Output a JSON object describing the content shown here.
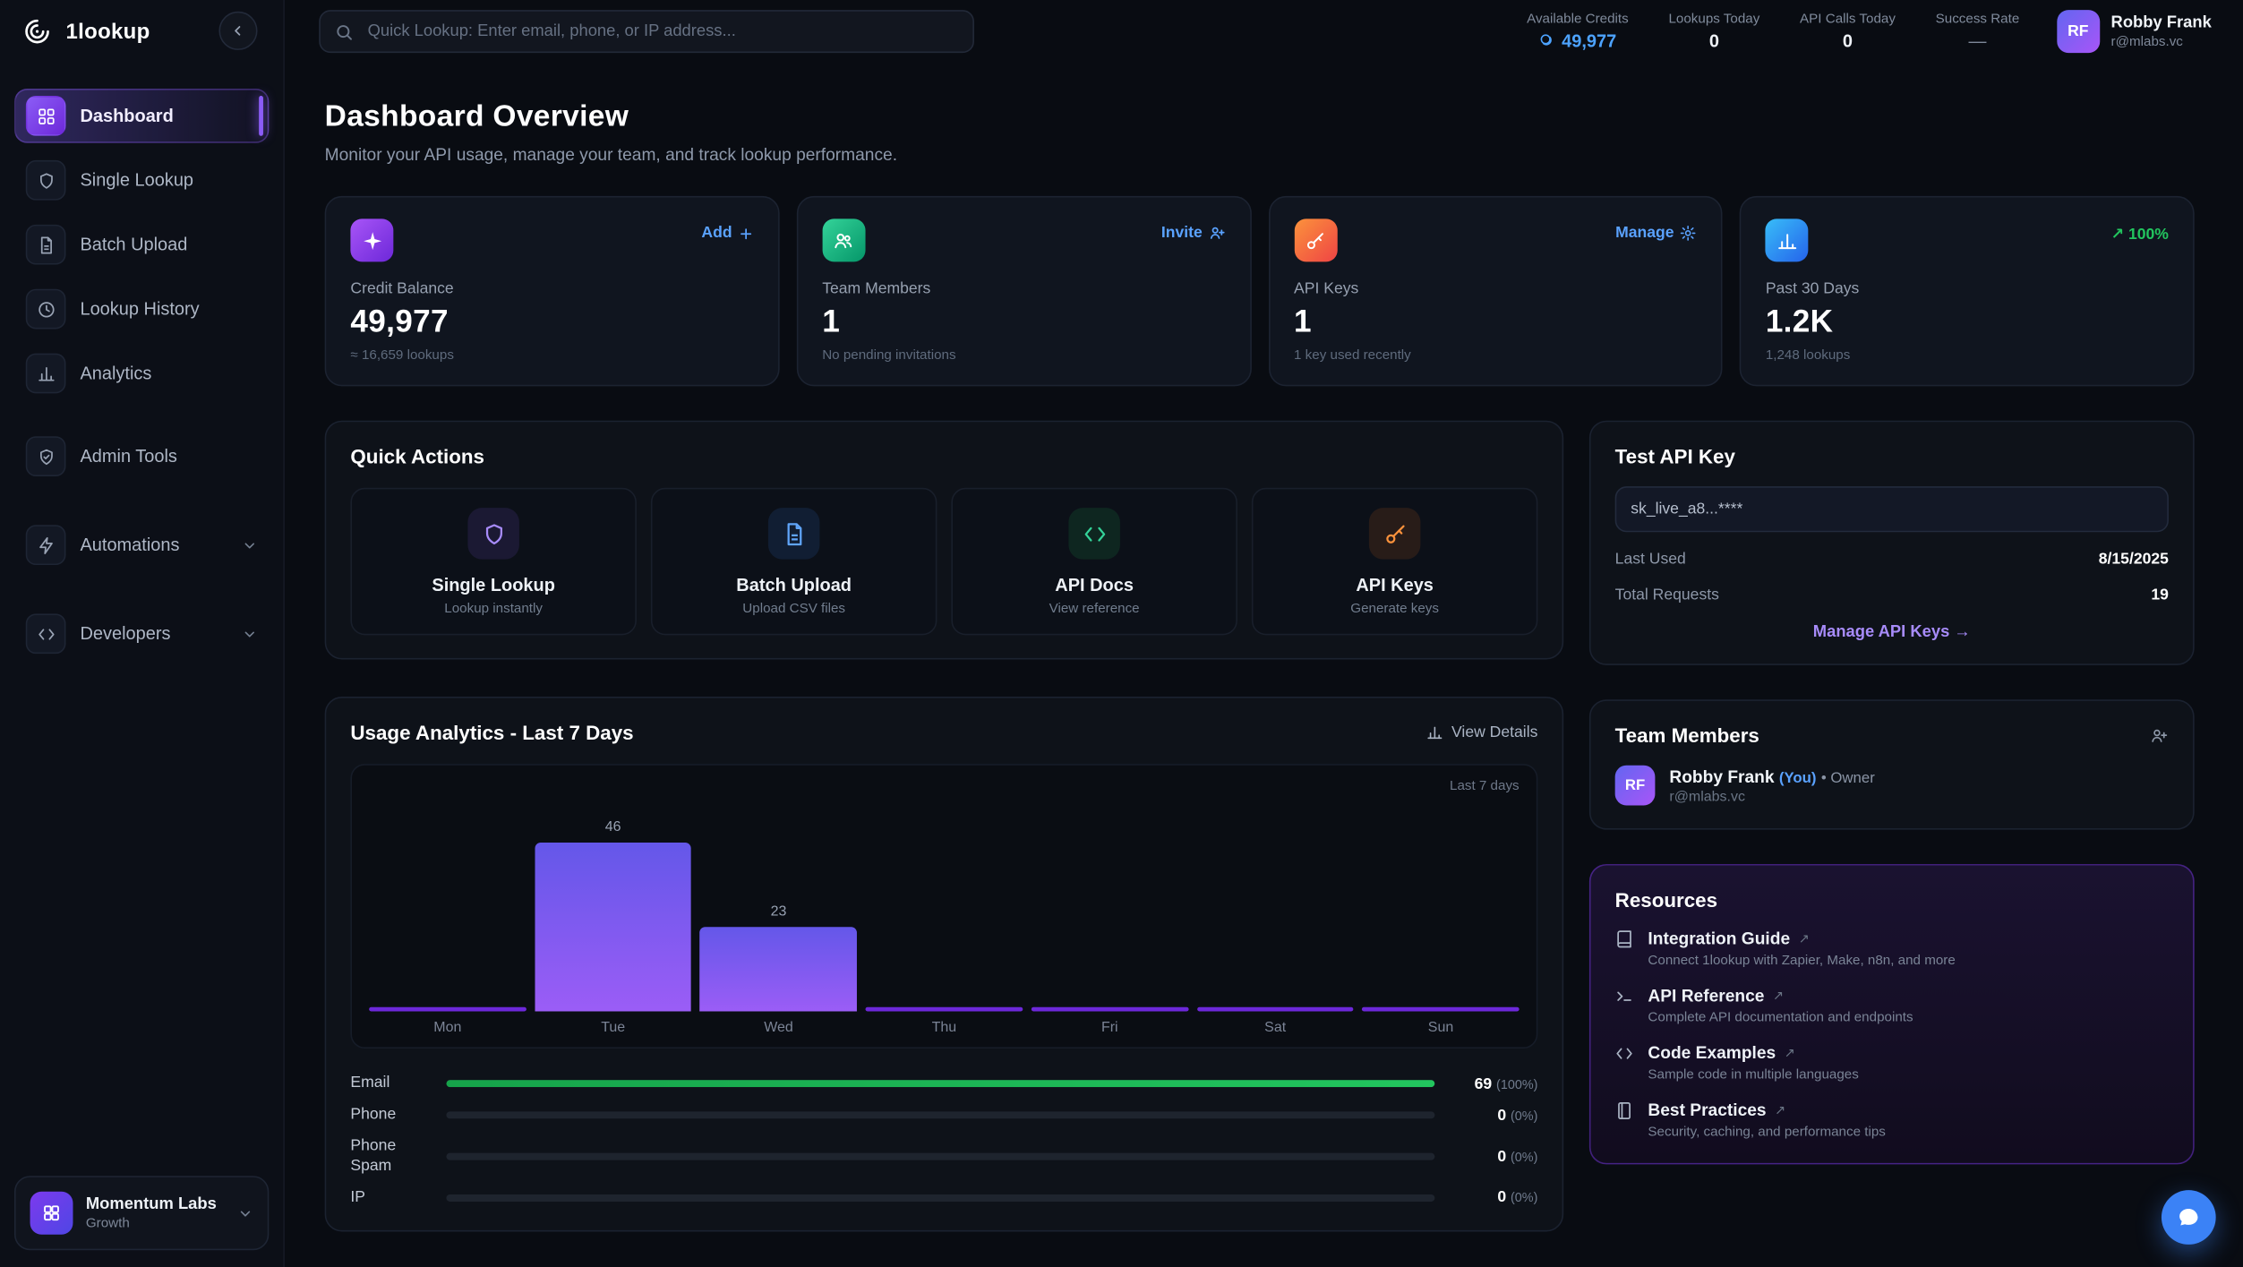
{
  "app": {
    "brand": "1lookup"
  },
  "colors": {
    "purple": "#8b5cf6",
    "blue": "#3b82f6",
    "green": "#22c55e",
    "orange": "#f97316",
    "credits_blue": "#4da3ff"
  },
  "topbar": {
    "search": {
      "placeholder": "Quick Lookup: Enter email, phone, or IP address..."
    },
    "stats": [
      {
        "label": "Available Credits",
        "value": "49,977"
      },
      {
        "label": "Lookups Today",
        "value": "0"
      },
      {
        "label": "API Calls Today",
        "value": "0"
      },
      {
        "label": "Success Rate",
        "value": "—"
      }
    ],
    "user": {
      "name": "Robby Frank",
      "email": "r@mlabs.vc",
      "initials": "RF"
    }
  },
  "sidebar": {
    "items": [
      {
        "label": "Dashboard"
      },
      {
        "label": "Single Lookup"
      },
      {
        "label": "Batch Upload"
      },
      {
        "label": "Lookup History"
      },
      {
        "label": "Analytics"
      },
      {
        "label": "Admin Tools"
      },
      {
        "label": "Automations"
      },
      {
        "label": "Developers"
      }
    ],
    "workspace": {
      "name": "Momentum Labs",
      "plan": "Growth"
    }
  },
  "page": {
    "title": "Dashboard Overview",
    "subtitle": "Monitor your API usage, manage your team, and track lookup performance."
  },
  "stat_cards": [
    {
      "label": "Credit Balance",
      "value": "49,977",
      "sub": "≈ 16,659 lookups",
      "action": "Add"
    },
    {
      "label": "Team Members",
      "value": "1",
      "sub": "No pending invitations",
      "action": "Invite"
    },
    {
      "label": "API Keys",
      "value": "1",
      "sub": "1 key used recently",
      "action": "Manage"
    },
    {
      "label": "Past 30 Days",
      "value": "1.2K",
      "sub": "1,248 lookups",
      "badge": "↗ 100%"
    }
  ],
  "quick_actions": {
    "title": "Quick Actions",
    "items": [
      {
        "label": "Single Lookup",
        "desc": "Lookup instantly"
      },
      {
        "label": "Batch Upload",
        "desc": "Upload CSV files"
      },
      {
        "label": "API Docs",
        "desc": "View reference"
      },
      {
        "label": "API Keys",
        "desc": "Generate keys"
      }
    ]
  },
  "usage": {
    "title": "Usage Analytics - Last 7 Days",
    "view_details": "View Details",
    "range_note": "Last 7 days"
  },
  "chart_data": {
    "type": "bar",
    "categories": [
      "Mon",
      "Tue",
      "Wed",
      "Thu",
      "Fri",
      "Sat",
      "Sun"
    ],
    "values": [
      0,
      46,
      23,
      0,
      0,
      0,
      0
    ],
    "title": "Usage Analytics - Last 7 Days",
    "xlabel": "",
    "ylabel": "",
    "ylim": [
      0,
      46
    ],
    "grid": false,
    "legend": "none",
    "bar_color_gradient": [
      "#6457e9",
      "#9b5df6"
    ]
  },
  "breakdown": [
    {
      "label": "Email",
      "value": "69",
      "pct_text": "(100%)",
      "pct": 100
    },
    {
      "label": "Phone",
      "value": "0",
      "pct_text": "(0%)",
      "pct": 0
    },
    {
      "label": "Phone Spam",
      "value": "0",
      "pct_text": "(0%)",
      "pct": 0
    },
    {
      "label": "IP",
      "value": "0",
      "pct_text": "(0%)",
      "pct": 0
    }
  ],
  "api_key_panel": {
    "title": "Test API Key",
    "masked_key": "sk_live_a8...****",
    "rows": [
      {
        "label": "Last Used",
        "value": "8/15/2025"
      },
      {
        "label": "Total Requests",
        "value": "19"
      }
    ],
    "manage_link": "Manage API Keys →"
  },
  "team_panel": {
    "title": "Team Members",
    "member": {
      "initials": "RF",
      "name": "Robby Frank",
      "you_tag": "(You)",
      "role": "• Owner",
      "email": "r@mlabs.vc"
    }
  },
  "resources": {
    "title": "Resources",
    "items": [
      {
        "label": "Integration Guide",
        "desc": "Connect 1lookup with Zapier, Make, n8n, and more"
      },
      {
        "label": "API Reference",
        "desc": "Complete API documentation and endpoints"
      },
      {
        "label": "Code Examples",
        "desc": "Sample code in multiple languages"
      },
      {
        "label": "Best Practices",
        "desc": "Security, caching, and performance tips"
      }
    ]
  }
}
